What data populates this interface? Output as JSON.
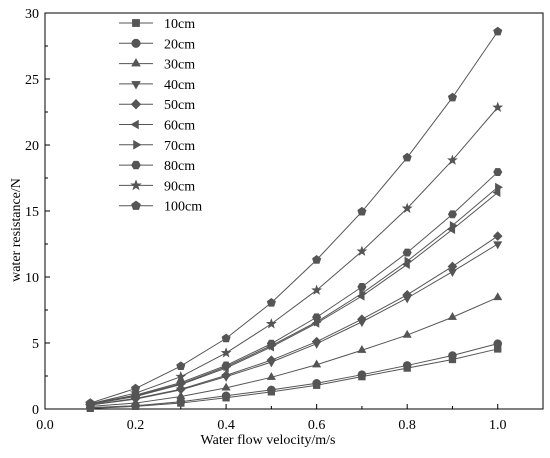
{
  "chart_data": {
    "type": "line",
    "xlabel": "Water flow velocity/m/s",
    "ylabel": "water resistance/N",
    "xlim": [
      0.0,
      1.1
    ],
    "ylim": [
      0,
      30
    ],
    "x_ticks": [
      "0.0",
      "0.2",
      "0.4",
      "0.6",
      "0.8",
      "1.0"
    ],
    "y_ticks": [
      "0",
      "5",
      "10",
      "15",
      "20",
      "25",
      "30"
    ],
    "legend_position": "top-left",
    "grid": false,
    "line_color": "#555555",
    "marker_color": "#555555",
    "x": [
      0.1,
      0.2,
      0.3,
      0.4,
      0.5,
      0.6,
      0.7,
      0.8,
      0.9,
      1.0
    ],
    "series": [
      {
        "name": "10cm",
        "marker": "square",
        "values": [
          0.05,
          0.2,
          0.45,
          0.85,
          1.3,
          1.8,
          2.45,
          3.1,
          3.75,
          4.55
        ]
      },
      {
        "name": "20cm",
        "marker": "circle",
        "values": [
          0.1,
          0.25,
          0.55,
          1.0,
          1.45,
          1.95,
          2.6,
          3.3,
          4.05,
          4.95
        ]
      },
      {
        "name": "30cm",
        "marker": "triangle-up",
        "values": [
          0.2,
          0.45,
          0.95,
          1.6,
          2.4,
          3.35,
          4.45,
          5.6,
          6.95,
          8.45
        ]
      },
      {
        "name": "40cm",
        "marker": "triangle-down",
        "values": [
          0.3,
          0.75,
          1.45,
          2.45,
          3.55,
          4.95,
          6.6,
          8.4,
          10.4,
          12.5
        ]
      },
      {
        "name": "50cm",
        "marker": "diamond",
        "values": [
          0.3,
          0.8,
          1.5,
          2.55,
          3.7,
          5.1,
          6.8,
          8.65,
          10.8,
          13.1
        ]
      },
      {
        "name": "60cm",
        "marker": "triangle-left",
        "values": [
          0.35,
          0.95,
          1.85,
          3.1,
          4.7,
          6.5,
          8.55,
          10.95,
          13.6,
          16.4
        ]
      },
      {
        "name": "70cm",
        "marker": "triangle-right",
        "values": [
          0.35,
          1.0,
          1.9,
          3.2,
          4.8,
          6.6,
          8.75,
          11.2,
          13.9,
          16.8
        ]
      },
      {
        "name": "80cm",
        "marker": "hexagon",
        "values": [
          0.4,
          1.05,
          2.0,
          3.3,
          4.95,
          6.95,
          9.25,
          11.85,
          14.75,
          17.95
        ]
      },
      {
        "name": "90cm",
        "marker": "star",
        "values": [
          0.4,
          1.2,
          2.45,
          4.25,
          6.45,
          9.0,
          11.95,
          15.2,
          18.85,
          22.85
        ]
      },
      {
        "name": "100cm",
        "marker": "pentagon",
        "values": [
          0.45,
          1.55,
          3.25,
          5.35,
          8.05,
          11.3,
          14.95,
          19.05,
          23.6,
          28.6
        ]
      }
    ]
  }
}
